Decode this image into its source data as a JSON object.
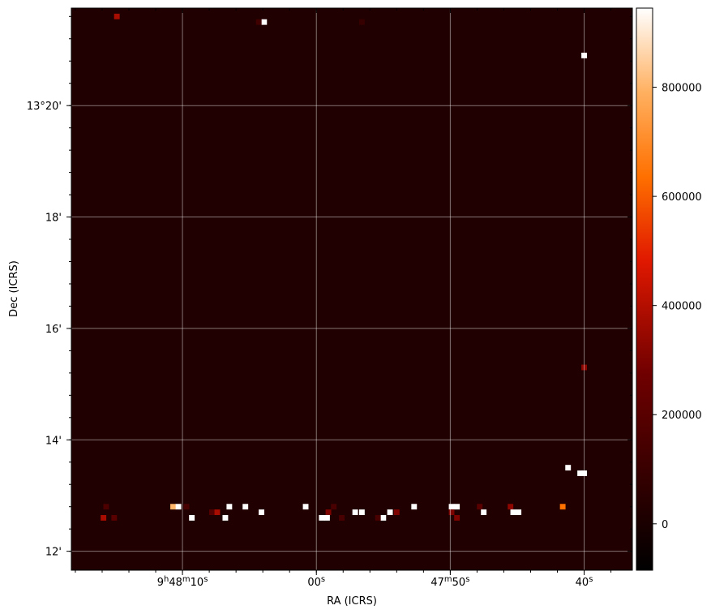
{
  "chart_data": {
    "type": "heatmap",
    "xlabel": "RA (ICRS)",
    "ylabel": "Dec (ICRS)",
    "colormap": "gist_heat",
    "background_color": "#200000",
    "grid": true,
    "colorbar": {
      "range": [
        -85000,
        945000
      ],
      "ticks": [
        0,
        200000,
        400000,
        600000,
        800000
      ],
      "tick_labels": [
        "0",
        "200000",
        "400000",
        "600000",
        "800000"
      ]
    },
    "x_ticks": [
      {
        "label_parts": [
          [
            "9",
            0
          ],
          [
            "h",
            1
          ],
          [
            "48",
            0
          ],
          [
            "m",
            1
          ],
          [
            "10",
            0
          ],
          [
            "s",
            1
          ]
        ],
        "ra_sec": 10
      },
      {
        "label_parts": [
          [
            "00",
            0
          ],
          [
            "s",
            1
          ]
        ],
        "ra_sec": 0
      },
      {
        "label_parts": [
          [
            "47",
            0
          ],
          [
            "m",
            1
          ],
          [
            "50",
            0
          ],
          [
            "s",
            1
          ]
        ],
        "ra_sec": -10
      },
      {
        "label_parts": [
          [
            "40",
            0
          ],
          [
            "s",
            1
          ]
        ],
        "ra_sec": -20
      }
    ],
    "x_range_sec": [
      18.3,
      -23.6
    ],
    "y_ticks": [
      {
        "label": "13°20'",
        "dec_min": 20
      },
      {
        "label": "18'",
        "dec_min": 18
      },
      {
        "label": "16'",
        "dec_min": 16
      },
      {
        "label": "14'",
        "dec_min": 14
      },
      {
        "label": "12'",
        "dec_min": 12
      }
    ],
    "y_range_min": [
      11.66,
      21.75
    ],
    "pixel_size": {
      "ra_sec": 0.4184,
      "dec_min": 0.1
    },
    "sources": [
      {
        "ra": 14.9,
        "dec": 21.6,
        "value": 380000
      },
      {
        "ra": 3.9,
        "dec": 21.5,
        "value": 945000
      },
      {
        "ra": 4.3,
        "dec": 21.5,
        "value": 120000
      },
      {
        "ra": -3.4,
        "dec": 21.5,
        "value": 90000
      },
      {
        "ra": -20.0,
        "dec": 20.9,
        "value": 945000
      },
      {
        "ra": -20.0,
        "dec": 15.3,
        "value": 330000
      },
      {
        "ra": -18.8,
        "dec": 13.5,
        "value": 945000
      },
      {
        "ra": -19.7,
        "dec": 13.4,
        "value": 945000
      },
      {
        "ra": -20.0,
        "dec": 13.4,
        "value": 945000
      },
      {
        "ra": 10.7,
        "dec": 12.8,
        "value": 800000
      },
      {
        "ra": 10.3,
        "dec": 12.8,
        "value": 945000
      },
      {
        "ra": 6.5,
        "dec": 12.8,
        "value": 945000
      },
      {
        "ra": 5.3,
        "dec": 12.8,
        "value": 945000
      },
      {
        "ra": 0.8,
        "dec": 12.8,
        "value": 945000
      },
      {
        "ra": -7.3,
        "dec": 12.8,
        "value": 945000
      },
      {
        "ra": -10.1,
        "dec": 12.8,
        "value": 945000
      },
      {
        "ra": -10.5,
        "dec": 12.8,
        "value": 945000
      },
      {
        "ra": -14.5,
        "dec": 12.8,
        "value": 330000
      },
      {
        "ra": -18.4,
        "dec": 12.8,
        "value": 640000
      },
      {
        "ra": 15.7,
        "dec": 12.8,
        "value": 160000
      },
      {
        "ra": 7.8,
        "dec": 12.7,
        "value": 190000
      },
      {
        "ra": 9.7,
        "dec": 12.8,
        "value": 150000
      },
      {
        "ra": -12.2,
        "dec": 12.8,
        "value": 200000
      },
      {
        "ra": -1.3,
        "dec": 12.8,
        "value": 150000
      },
      {
        "ra": 7.4,
        "dec": 12.7,
        "value": 380000
      },
      {
        "ra": 4.1,
        "dec": 12.7,
        "value": 945000
      },
      {
        "ra": -2.9,
        "dec": 12.7,
        "value": 945000
      },
      {
        "ra": -3.4,
        "dec": 12.7,
        "value": 945000
      },
      {
        "ra": -5.5,
        "dec": 12.7,
        "value": 945000
      },
      {
        "ra": -12.5,
        "dec": 12.7,
        "value": 945000
      },
      {
        "ra": -14.7,
        "dec": 12.7,
        "value": 945000
      },
      {
        "ra": -15.1,
        "dec": 12.7,
        "value": 945000
      },
      {
        "ra": -0.9,
        "dec": 12.7,
        "value": 300000
      },
      {
        "ra": -6.0,
        "dec": 12.7,
        "value": 300000
      },
      {
        "ra": -10.1,
        "dec": 12.7,
        "value": 300000
      },
      {
        "ra": 15.1,
        "dec": 12.6,
        "value": 200000
      },
      {
        "ra": 9.3,
        "dec": 12.6,
        "value": 945000
      },
      {
        "ra": 6.8,
        "dec": 12.6,
        "value": 945000
      },
      {
        "ra": -0.4,
        "dec": 12.6,
        "value": 945000
      },
      {
        "ra": -0.8,
        "dec": 12.6,
        "value": 945000
      },
      {
        "ra": -5.0,
        "dec": 12.6,
        "value": 945000
      },
      {
        "ra": 15.9,
        "dec": 12.6,
        "value": 380000
      },
      {
        "ra": -1.9,
        "dec": 12.6,
        "value": 150000
      },
      {
        "ra": -4.6,
        "dec": 12.6,
        "value": 150000
      },
      {
        "ra": -10.5,
        "dec": 12.6,
        "value": 300000
      }
    ]
  }
}
